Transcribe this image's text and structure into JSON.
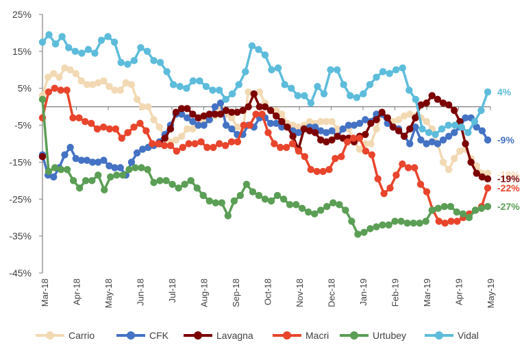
{
  "chart_data": {
    "type": "line",
    "title": "",
    "xlabel": "",
    "ylabel": "",
    "ylim": [
      -45,
      25
    ],
    "yticks": [
      25,
      15,
      5,
      -5,
      -15,
      -25,
      -35,
      -45
    ],
    "ytick_labels": [
      "25%",
      "15%",
      "5%",
      "-5%",
      "-15%",
      "-25%",
      "-35%",
      "-45%"
    ],
    "xtick_labels": [
      "Mar-18",
      "Apr-18",
      "May-18",
      "Jun-18",
      "Jul-18",
      "Aug-18",
      "Sep-18",
      "Oct-18",
      "Nov-18",
      "Dec-18",
      "Jan-19",
      "Feb-19",
      "Mar-19",
      "Apr-19",
      "May-19"
    ],
    "grid": false,
    "legend_position": "bottom",
    "series": [
      {
        "name": "Carrio",
        "color": "#F2D9B3",
        "end_label": "-18%",
        "values": [
          3,
          8,
          9,
          8,
          10.5,
          10,
          9,
          7,
          6,
          6,
          6.5,
          7,
          5.5,
          4.5,
          4.5,
          6.5,
          6,
          2,
          0,
          0,
          -3.5,
          -5.5,
          -8,
          -9.5,
          -9,
          -8,
          -6,
          -6,
          -4,
          -4,
          -3,
          -2.5,
          0,
          -2,
          -3,
          -5.5,
          -6,
          4,
          3,
          4,
          1,
          -1,
          -1,
          -2,
          -4.5,
          -5,
          -5.5,
          -5,
          -4,
          -4.5,
          -4,
          -4,
          -4,
          -6,
          -6,
          -6,
          -9.5,
          -11.5,
          -10,
          -10,
          -6,
          -2,
          -3,
          -4,
          -3.5,
          -2.5,
          -2,
          -2.5,
          -3,
          -4,
          -6,
          -10,
          -15,
          -17,
          -14,
          -12,
          -11.5,
          -14,
          -16,
          -18,
          -18
        ]
      },
      {
        "name": "CFK",
        "color": "#4472C4",
        "end_label": "-9%",
        "values": [
          -13,
          -18.5,
          -19,
          -16.5,
          -13,
          -11,
          -14,
          -14.5,
          -14.5,
          -15,
          -15,
          -14.5,
          -16,
          -16.5,
          -16.5,
          -18.5,
          -15,
          -12.5,
          -11.5,
          -11,
          -10.5,
          -9.5,
          -7.5,
          -5,
          -2,
          -2,
          -3,
          -4,
          -5,
          -5,
          -3.5,
          0,
          1,
          -5,
          -6,
          -7.5,
          -7.5,
          -5,
          -5.5,
          -3,
          -3,
          -4.5,
          -4.5,
          -5.5,
          -5.5,
          -6.5,
          -7,
          -6,
          -5.5,
          -5.5,
          -6.5,
          -7,
          -6.5,
          -8,
          -6,
          -5,
          -5,
          -4.5,
          -3.5,
          -4,
          -2,
          -2,
          -4.5,
          -5.5,
          -6,
          -8,
          -10,
          -5.5,
          -9,
          -10,
          -9.5,
          -10,
          -9,
          -8,
          -7,
          -5.5,
          -3,
          -3,
          -5.5,
          -6.5,
          -9
        ]
      },
      {
        "name": "Lavagna",
        "color": "#7B0000",
        "end_label": "-19%",
        "values": [
          -13.5,
          null,
          null,
          null,
          null,
          null,
          null,
          null,
          null,
          null,
          null,
          null,
          null,
          null,
          null,
          null,
          null,
          null,
          null,
          null,
          null,
          -10,
          -8.5,
          -6,
          -1.5,
          -0.5,
          -0.5,
          -2,
          -3,
          -2.5,
          -2,
          -2,
          -2,
          -1,
          -1.5,
          -1.5,
          -1,
          0,
          3.5,
          0,
          0,
          -1,
          -2.5,
          -4,
          -5.5,
          -8,
          -11.5,
          -6,
          -6.5,
          -7,
          -9,
          -9.5,
          -9,
          -8,
          -8.5,
          -8.5,
          -9.5,
          -8,
          -7.5,
          -4.5,
          -3.5,
          -1.5,
          -3,
          -5.5,
          -6.5,
          -8,
          -6,
          -3,
          0.5,
          1,
          3,
          2,
          1,
          0.5,
          -1,
          -4,
          -10,
          -15,
          -18,
          -19,
          -19.5
        ]
      },
      {
        "name": "Macri",
        "color": "#E8452C",
        "end_label": "-22%",
        "values": [
          -3,
          4,
          5,
          4.5,
          4.5,
          -3,
          -3,
          -4,
          -4.5,
          -6,
          -5.5,
          -6,
          -6,
          -8.5,
          -7,
          -5.5,
          -4.5,
          -6.5,
          -10,
          -10,
          -10.5,
          -10.5,
          -12,
          -11,
          -10,
          -10,
          -9.5,
          -11,
          -11,
          -10,
          -10.5,
          -9.5,
          -9.5,
          -5,
          -5,
          -2,
          -2,
          -7,
          -10,
          -11,
          -11,
          -10,
          -12,
          -13.5,
          -17,
          -17.5,
          -17.5,
          -17,
          -14,
          -13.5,
          -9.5,
          -8.5,
          -8.5,
          -12,
          -13,
          -19.5,
          -23.5,
          -22,
          -18.5,
          -15.5,
          -16.5,
          -16.5,
          -21,
          -23,
          -28,
          -31,
          -31.5,
          -31,
          -31,
          -30,
          -29,
          -28,
          -27,
          -22
        ]
      },
      {
        "name": "Urtubey",
        "color": "#5B9E55",
        "end_label": "-27%",
        "values": [
          2,
          -17.5,
          -16.5,
          -17,
          -17,
          -20,
          -22,
          -20,
          -20,
          -18.5,
          -22.5,
          -19,
          -18.5,
          -18.5,
          -17,
          -16.5,
          -16.5,
          -17,
          -20.5,
          -20,
          -20,
          -21,
          -22,
          -21,
          -20,
          -22,
          -24,
          -25.5,
          -26,
          -26,
          -29.5,
          -25.5,
          -24,
          -21,
          -23,
          -24,
          -25,
          -25.5,
          -24,
          -25,
          -26.5,
          -26.5,
          -27.5,
          -28.5,
          -29,
          -28,
          -27,
          -26,
          -26.5,
          -28,
          -31,
          -34.5,
          -34,
          -33,
          -32.5,
          -32,
          -32,
          -31,
          -31,
          -31.5,
          -31.5,
          -31.5,
          -31,
          -28,
          -27.5,
          -27,
          -27,
          -28.5,
          -29,
          -30,
          -28,
          -27.5,
          -27
        ]
      },
      {
        "name": "Vidal",
        "color": "#5DBCDB",
        "end_label": "4%",
        "values": [
          17.5,
          19.5,
          17,
          19,
          16,
          15,
          14.5,
          15.5,
          14.5,
          18,
          19,
          17.5,
          12,
          11.5,
          12.5,
          16,
          15,
          12.5,
          12,
          9.5,
          6,
          5.5,
          5,
          7,
          7,
          5.5,
          4.5,
          4.5,
          2,
          3.5,
          6,
          9.5,
          16.5,
          15.5,
          14,
          10,
          10.5,
          6,
          5,
          3,
          3,
          1,
          5.5,
          3.5,
          10,
          10,
          6,
          3,
          2.5,
          3.5,
          6,
          8,
          9.5,
          9,
          10,
          10.5,
          4.5,
          2,
          -6,
          -7,
          -7.5,
          -6,
          -5,
          -5,
          -5.5,
          -7,
          -4,
          -1,
          4
        ]
      }
    ]
  }
}
